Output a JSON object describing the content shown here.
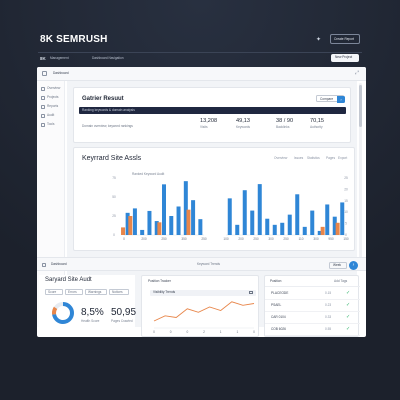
{
  "header": {
    "brand": "8K SEMRUSH",
    "action_button": "Create Report",
    "subnav_logo": "8K",
    "subnav_links": [
      "Management",
      "Dashboard Navigation"
    ],
    "subnav_button": "New Project"
  },
  "window": {
    "title": "Dashboard",
    "sidebar": [
      {
        "label": "Overview"
      },
      {
        "label": "Projects"
      },
      {
        "label": "Reports"
      },
      {
        "label": "Audit"
      },
      {
        "label": "Tools"
      }
    ]
  },
  "project_card": {
    "title": "Gatrier Resuut",
    "button": "Compare",
    "search_placeholder": "Ranking keywords & domain analysis",
    "subtitle": "Domain overview, keyword rankings",
    "stats": [
      {
        "value": "13,208",
        "label": "Visits"
      },
      {
        "value": "49,13",
        "label": "Keywords"
      },
      {
        "value": "38 / 90",
        "label": "Backlinks"
      },
      {
        "value": "70,15",
        "label": "Authority"
      }
    ]
  },
  "audit_card": {
    "title": "Keyrrard Site Assls",
    "tabs": [
      "Overview",
      "Issues",
      "Statistics",
      "Pages",
      "Export"
    ],
    "chart_caption": "Ranked Keyword Audit",
    "chart_data": {
      "type": "bar",
      "panels": [
        {
          "x_ticks": [
            "0",
            "200",
            "250",
            "350",
            "250"
          ],
          "y_ticks": [
            "75",
            "50",
            "25",
            "0"
          ],
          "series": [
            {
              "color": "#2f86d6",
              "values": [
                35,
                42,
                8,
                38,
                22,
                80,
                30,
                45,
                85,
                55,
                25
              ]
            },
            {
              "color": "#e8864a",
              "values": [
                12,
                30,
                0,
                0,
                0,
                20,
                0,
                0,
                0,
                40,
                0
              ]
            }
          ]
        },
        {
          "x_ticks": [
            "100",
            "200",
            "250",
            "300",
            "250",
            "110",
            "300",
            "950",
            "150"
          ],
          "y_ticks": [
            "25",
            "20",
            "15",
            "10",
            "5",
            "0"
          ],
          "series": [
            {
              "color": "#2f86d6",
              "values": [
                18,
                5,
                22,
                12,
                25,
                8,
                5,
                6,
                10,
                20,
                4,
                12,
                2,
                15,
                9,
                16
              ]
            },
            {
              "color": "#e8864a",
              "values": [
                0,
                0,
                0,
                0,
                0,
                0,
                0,
                0,
                0,
                0,
                0,
                0,
                0,
                4,
                0,
                6
              ]
            }
          ]
        }
      ]
    }
  },
  "bottom_bar": {
    "label": "Dashboard",
    "center": "Keyword Trends",
    "select": "Week"
  },
  "site_audit": {
    "title": "Saryard Site Audt",
    "chips": [
      "Score",
      "Errors",
      "Warnings",
      "Notices"
    ],
    "donut_percent": 72,
    "big_values": [
      {
        "value": "8,5%",
        "label": "Health Score"
      },
      {
        "value": "50,95",
        "label": "Pages Crawled"
      }
    ]
  },
  "trend_panel": {
    "title": "Position Tracker",
    "selector": "Visibility Trends",
    "chart_data": {
      "type": "line",
      "values": [
        8,
        14,
        12,
        22,
        18,
        24,
        20,
        30,
        26,
        28
      ],
      "x_ticks": [
        "0",
        "0",
        "0",
        "2",
        "1",
        "1",
        "0"
      ]
    }
  },
  "list_panel": {
    "title": "Position",
    "action": "Add Tags",
    "rows": [
      {
        "key": "PLACEODE",
        "meta": "0.15"
      },
      {
        "key": "PSAEL",
        "meta": "0.23"
      },
      {
        "key": "CAR 0104",
        "meta": "0.33"
      },
      {
        "key": "COB 6026",
        "meta": "0.55"
      }
    ]
  }
}
